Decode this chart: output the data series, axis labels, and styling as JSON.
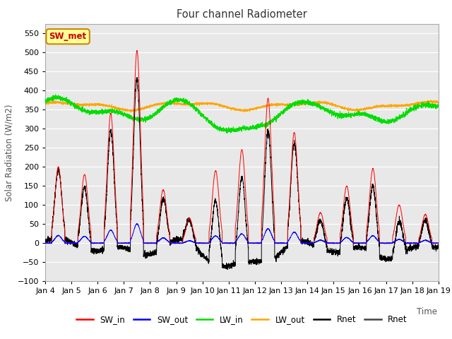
{
  "title": "Four channel Radiometer",
  "xlabel": "Time",
  "ylabel": "Solar Radiation (W/m2)",
  "ylim": [
    -100,
    575
  ],
  "yticks": [
    -100,
    -50,
    0,
    50,
    100,
    150,
    200,
    250,
    300,
    350,
    400,
    450,
    500,
    550
  ],
  "colors": {
    "SW_in": "#ff0000",
    "SW_out": "#0000ff",
    "LW_in": "#00dd00",
    "LW_out": "#ffa500",
    "Rnet1": "#000000",
    "Rnet2": "#444444"
  },
  "annotation_text": "SW_met",
  "annotation_color": "#cc0000",
  "annotation_bg": "#ffff99",
  "annotation_border": "#cc8800",
  "background_color": "#e8e8e8",
  "grid_color": "#ffffff",
  "xtick_labels": [
    "Jan 4",
    "Jan 5",
    "Jan 6",
    "Jan 7",
    "Jan 8",
    "Jan 9",
    "Jan 10",
    "Jan 11",
    "Jan 12",
    "Jan 13",
    "Jan 14",
    "Jan 15",
    "Jan 16",
    "Jan 17",
    "Jan 18",
    "Jan 19"
  ],
  "legend_entries": [
    "SW_in",
    "SW_out",
    "LW_in",
    "LW_out",
    "Rnet",
    "Rnet"
  ]
}
